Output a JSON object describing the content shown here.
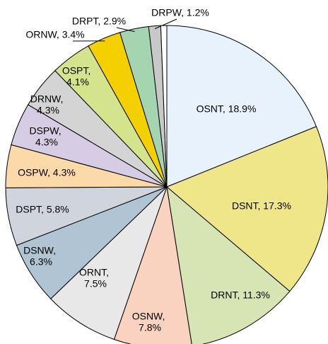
{
  "chart_data": {
    "type": "pie",
    "categories": [
      "OSNT",
      "DSNT",
      "DRNT",
      "OSNW",
      "ORNT",
      "DSNW",
      "DSPT",
      "OSPW",
      "DSPW",
      "DRNW",
      "OSPT",
      "ORNW",
      "DRPT",
      "DRPW",
      null
    ],
    "values": [
      18.9,
      17.3,
      11.3,
      7.8,
      7.5,
      6.3,
      5.8,
      4.3,
      4.3,
      4.3,
      4.1,
      3.4,
      2.9,
      1.2,
      0.6
    ],
    "value_labels": [
      "OSNT, 18.9%",
      "DSNT, 17.3%",
      "DRNT, 11.3%",
      "OSNW, 7.8%",
      "ORNT, 7.5%",
      "DSNW, 6.3%",
      "DSPT, 5.8%",
      "OSPW, 4.3%",
      "DSPW, 4.3%",
      "DRNW, 4.3%",
      "OSPT, 4.1%",
      "ORNW, 3.4%",
      "DRPT, 2.9%",
      "DRPW, 1.2%",
      null
    ],
    "colors": [
      "#e8f2fc",
      "#efe68a",
      "#d7e4b4",
      "#f9d3c0",
      "#e8e8e8",
      "#b0c4d4",
      "#d0d4dc",
      "#fcd9a8",
      "#d6cce4",
      "#d4d4d4",
      "#d4e48c",
      "#f5d000",
      "#a4d4b0",
      "#c8c8c8",
      "#ffffff"
    ]
  }
}
